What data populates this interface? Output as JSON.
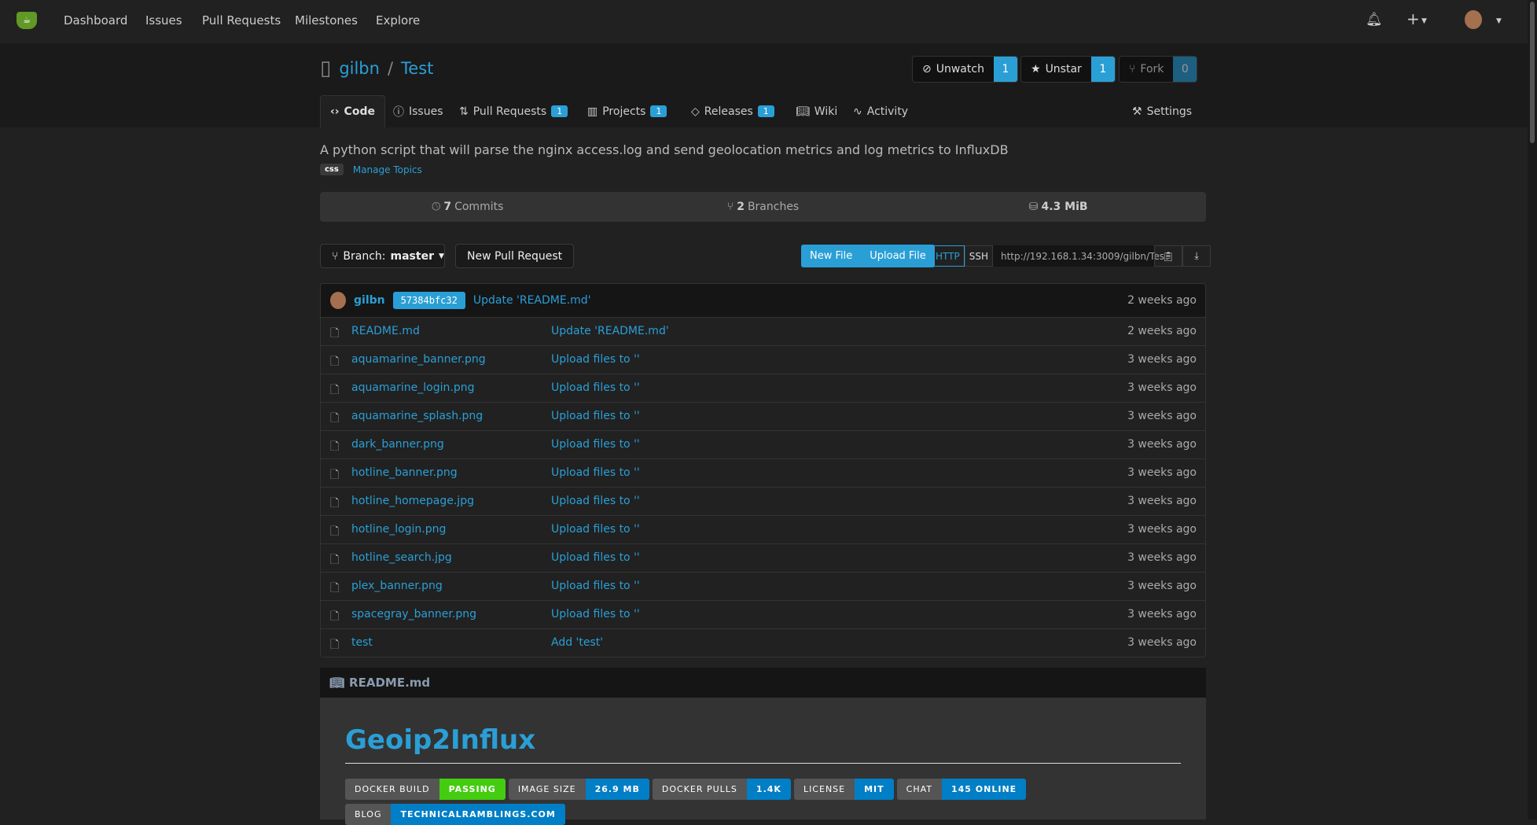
{
  "nav": {
    "items": [
      "Dashboard",
      "Issues",
      "Pull Requests",
      "Milestones",
      "Explore"
    ],
    "plus": "+"
  },
  "repo": {
    "owner": "gilbn",
    "name": "Test",
    "unwatch": "Unwatch",
    "watch_count": "1",
    "unstar": "Unstar",
    "star_count": "1",
    "fork": "Fork",
    "fork_count": "0"
  },
  "tabs": {
    "code": "Code",
    "issues": "Issues",
    "pulls": "Pull Requests",
    "pulls_count": "1",
    "projects": "Projects",
    "projects_count": "1",
    "releases": "Releases",
    "releases_count": "1",
    "wiki": "Wiki",
    "activity": "Activity",
    "settings": "Settings"
  },
  "description": "A python script that will parse the nginx access.log and send geolocation metrics and log metrics to InfluxDB",
  "topics": {
    "tag": "css",
    "manage": "Manage Topics"
  },
  "stats": {
    "commits_num": "7",
    "commits": "Commits",
    "branches_num": "2",
    "branches": "Branches",
    "size": "4.3 MiB"
  },
  "toolbar": {
    "branch_label": "Branch:",
    "branch": "master",
    "new_pr": "New Pull Request",
    "new_file": "New File",
    "upload": "Upload File",
    "http": "HTTP",
    "ssh": "SSH",
    "url": "http://192.168.1.34:3009/gilbn/Tes"
  },
  "latest_commit": {
    "author": "gilbn",
    "sha": "57384bfc32",
    "message": "Update 'README.md'",
    "time": "2 weeks ago"
  },
  "files": [
    {
      "name": "README.md",
      "msg": "Update 'README.md'",
      "time": "2 weeks ago"
    },
    {
      "name": "aquamarine_banner.png",
      "msg": "Upload files to ''",
      "time": "3 weeks ago"
    },
    {
      "name": "aquamarine_login.png",
      "msg": "Upload files to ''",
      "time": "3 weeks ago"
    },
    {
      "name": "aquamarine_splash.png",
      "msg": "Upload files to ''",
      "time": "3 weeks ago"
    },
    {
      "name": "dark_banner.png",
      "msg": "Upload files to ''",
      "time": "3 weeks ago"
    },
    {
      "name": "hotline_banner.png",
      "msg": "Upload files to ''",
      "time": "3 weeks ago"
    },
    {
      "name": "hotline_homepage.jpg",
      "msg": "Upload files to ''",
      "time": "3 weeks ago"
    },
    {
      "name": "hotline_login.png",
      "msg": "Upload files to ''",
      "time": "3 weeks ago"
    },
    {
      "name": "hotline_search.jpg",
      "msg": "Upload files to ''",
      "time": "3 weeks ago"
    },
    {
      "name": "plex_banner.png",
      "msg": "Upload files to ''",
      "time": "3 weeks ago"
    },
    {
      "name": "spacegray_banner.png",
      "msg": "Upload files to ''",
      "time": "3 weeks ago"
    },
    {
      "name": "test",
      "msg": "Add 'test'",
      "time": "3 weeks ago"
    }
  ],
  "readme": {
    "filename": "README.md",
    "title": "Geoip2Influx",
    "badges": [
      {
        "k": "DOCKER BUILD",
        "v": "PASSING",
        "color": "#4c1"
      },
      {
        "k": "IMAGE SIZE",
        "v": "26.9 MB",
        "color": "#007ec6"
      },
      {
        "k": "DOCKER PULLS",
        "v": "1.4K",
        "color": "#007ec6"
      },
      {
        "k": "LICENSE",
        "v": "MIT",
        "color": "#007ec6"
      },
      {
        "k": "CHAT",
        "v": "145 ONLINE",
        "color": "#007ec6"
      },
      {
        "k": "BLOG",
        "v": "TECHNICALRAMBLINGS.COM",
        "color": "#007ec6"
      }
    ]
  },
  "colors": {
    "accent": "#2a9fd6",
    "logo": "#609926"
  }
}
